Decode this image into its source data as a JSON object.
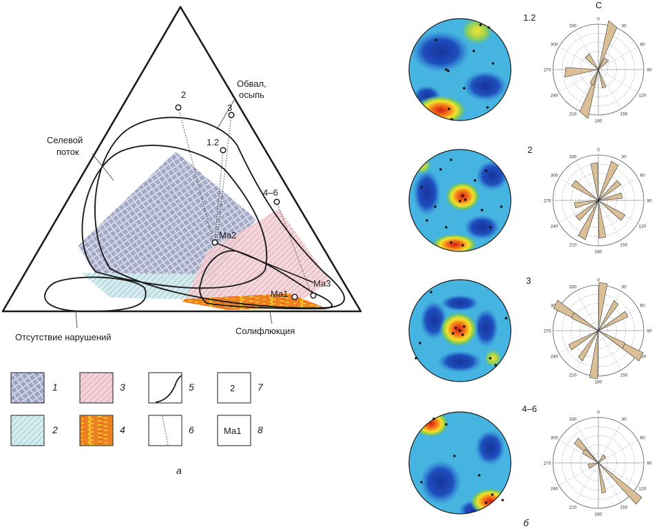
{
  "panel_a": {
    "label": "а",
    "field_labels": {
      "debris_flow": [
        "Селевой",
        "поток"
      ],
      "rockfall": [
        "Обвал,",
        "осыпь"
      ],
      "no_disturbance": "Отсутствие нарушений",
      "solifluction": "Солифлюкция"
    },
    "points": {
      "p2": "2",
      "p3": "3",
      "p12": "1.2",
      "p46": "4–6",
      "ma1": "Ма1",
      "ma2": "Ма2",
      "ma3": "Ма3"
    }
  },
  "legend": {
    "items": [
      {
        "num": "1",
        "kind": "blue-weave"
      },
      {
        "num": "2",
        "kind": "cyan-hatch"
      },
      {
        "num": "3",
        "kind": "pink-hatch"
      },
      {
        "num": "4",
        "kind": "orange-texture"
      },
      {
        "num": "5",
        "kind": "curve"
      },
      {
        "num": "6",
        "kind": "dotted-line"
      },
      {
        "num": "7",
        "kind": "sample",
        "inner": "2"
      },
      {
        "num": "8",
        "kind": "sample",
        "inner": "Ма1"
      }
    ]
  },
  "panel_b": {
    "label": "б",
    "north_label": "С",
    "rows": [
      {
        "label": "1.2"
      },
      {
        "label": "2"
      },
      {
        "label": "3"
      },
      {
        "label": "4–6"
      }
    ],
    "rose_ticks": [
      "0",
      "30",
      "60",
      "90",
      "120",
      "150",
      "180",
      "210",
      "240",
      "270",
      "300",
      "330"
    ]
  }
}
